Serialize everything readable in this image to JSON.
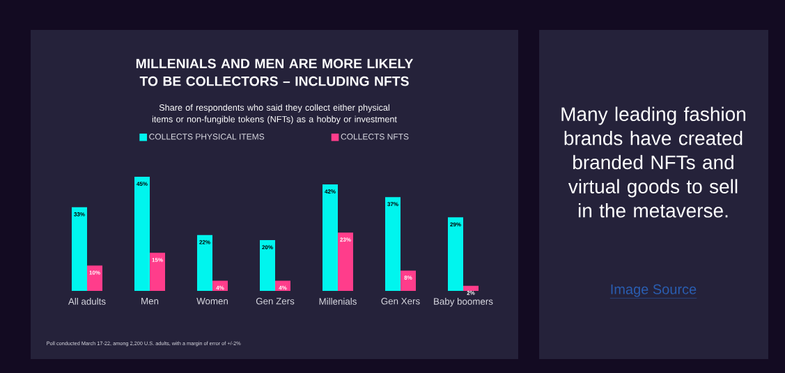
{
  "chart_data": [
    {
      "type": "bar",
      "title": "MILLENIALS AND MEN ARE MORE LIKELY TO BE COLLECTORS – INCLUDING NFTS",
      "subtitle": "Share of respondents who said they collect either physical items or non-fungible tokens (NFTs) as a hobby or investment",
      "categories": [
        "All adults",
        "Men",
        "Women",
        "Gen Zers",
        "Millenials",
        "Gen Xers",
        "Baby boomers"
      ],
      "series": [
        {
          "name": "COLLECTS PHYSICAL ITEMS",
          "color": "#00f5ee",
          "values": [
            33,
            45,
            22,
            20,
            42,
            37,
            29
          ],
          "value_labels": [
            "33%",
            "45%",
            "22%",
            "20%",
            "42%",
            "37%",
            "29%"
          ]
        },
        {
          "name": "COLLECTS NFTS",
          "color": "#ff3d8b",
          "values": [
            10,
            15,
            4,
            4,
            23,
            8,
            2
          ],
          "value_labels": [
            "10%",
            "15%",
            "4%",
            "4%",
            "23%",
            "8%",
            "2%"
          ]
        }
      ],
      "legend": "top",
      "grid": false,
      "annotations": [
        "Poll conducted March 17-22, among 2,200 U.S. adults, with a margin of error of +/-2%"
      ]
    },
    {
      "type": "other",
      "annotations": [
        "Many leading fashion brands have created branded NFTs and virtual goods to sell in the metaverse.",
        "Image Source"
      ]
    }
  ]
}
